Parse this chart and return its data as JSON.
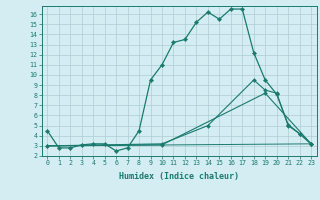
{
  "xlabel": "Humidex (Indice chaleur)",
  "background_color": "#d4edf2",
  "grid_color": "#aecdd5",
  "line_color": "#1a7a6e",
  "xlim": [
    -0.5,
    23.5
  ],
  "ylim": [
    2,
    16.8
  ],
  "xticks": [
    0,
    1,
    2,
    3,
    4,
    5,
    6,
    7,
    8,
    9,
    10,
    11,
    12,
    13,
    14,
    15,
    16,
    17,
    18,
    19,
    20,
    21,
    22,
    23
  ],
  "yticks": [
    2,
    3,
    4,
    5,
    6,
    7,
    8,
    9,
    10,
    11,
    12,
    13,
    14,
    15,
    16
  ],
  "line1_x": [
    0,
    1,
    2,
    3,
    4,
    5,
    6,
    7,
    8,
    9,
    10,
    11,
    12,
    13,
    14,
    15,
    16,
    17,
    18,
    19,
    20,
    21,
    22,
    23
  ],
  "line1_y": [
    4.5,
    2.8,
    2.8,
    3.1,
    3.2,
    3.2,
    2.5,
    2.8,
    4.5,
    9.5,
    11.0,
    13.2,
    13.5,
    15.2,
    16.2,
    15.5,
    16.5,
    16.5,
    12.2,
    9.5,
    8.1,
    5.1,
    4.2,
    3.2
  ],
  "line2_x": [
    0,
    10,
    14,
    18,
    19,
    20,
    21,
    22,
    23
  ],
  "line2_y": [
    3.0,
    3.2,
    5.0,
    9.5,
    8.5,
    8.2,
    5.0,
    4.2,
    3.2
  ],
  "line3_x": [
    0,
    10,
    19,
    23
  ],
  "line3_y": [
    3.0,
    3.1,
    8.2,
    3.2
  ],
  "line4_x": [
    0,
    23
  ],
  "line4_y": [
    3.0,
    3.2
  ]
}
